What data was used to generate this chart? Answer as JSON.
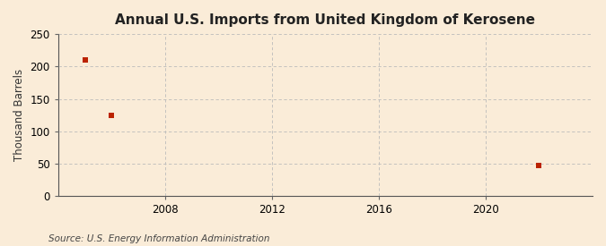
{
  "title": "Annual U.S. Imports from United Kingdom of Kerosene",
  "ylabel": "Thousand Barrels",
  "source": "Source: U.S. Energy Information Administration",
  "background_color": "#faecd8",
  "plot_bg_color": "#faecd8",
  "data_x": [
    2005,
    2006,
    2022
  ],
  "data_y": [
    210,
    125,
    48
  ],
  "marker_color": "#bb2200",
  "marker_size": 4,
  "xlim": [
    2004,
    2024
  ],
  "ylim": [
    0,
    250
  ],
  "yticks": [
    0,
    50,
    100,
    150,
    200,
    250
  ],
  "xticks": [
    2008,
    2012,
    2016,
    2020
  ],
  "grid_color": "#bbbbbb",
  "title_fontsize": 11,
  "label_fontsize": 8.5,
  "tick_fontsize": 8.5,
  "source_fontsize": 7.5
}
